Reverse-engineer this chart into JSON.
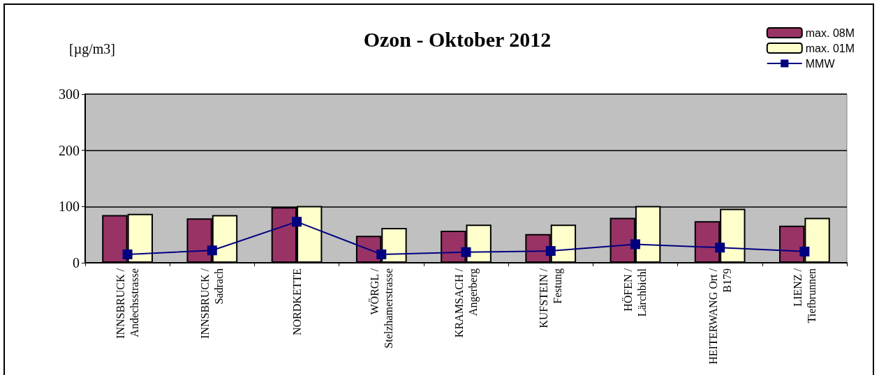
{
  "chart_data": {
    "type": "bar",
    "title": "Ozon - Oktober 2012",
    "ylabel": "[µg/m3]",
    "categories": [
      "INNSBRUCK / Andechsstrasse",
      "INNSBRUCK / Sadrach",
      "NORDKETTE",
      "WÖRGL / Stelzhamerstrasse",
      "KRAMSACH / Angerberg",
      "KUFSTEIN / Festung",
      "HÖFEN / Lärchbichl",
      "HEITERWANG Ort / B179",
      "LIENZ / Tiefbrunnen"
    ],
    "series": [
      {
        "name": "max. 08M",
        "color": "#993366",
        "values": [
          85,
          79,
          99,
          48,
          57,
          51,
          80,
          74,
          66
        ]
      },
      {
        "name": "max. 01M",
        "color": "#ffffcc",
        "values": [
          87,
          85,
          101,
          62,
          68,
          68,
          101,
          96,
          80
        ]
      },
      {
        "name": "MMW",
        "type": "line",
        "color": "#000080",
        "marker": "square",
        "values": [
          15,
          22,
          73,
          15,
          19,
          21,
          33,
          27,
          20
        ]
      }
    ],
    "ylim": [
      0,
      300
    ],
    "yticks": [
      0,
      100,
      200,
      300
    ],
    "grid": "y",
    "legend": "top right"
  }
}
